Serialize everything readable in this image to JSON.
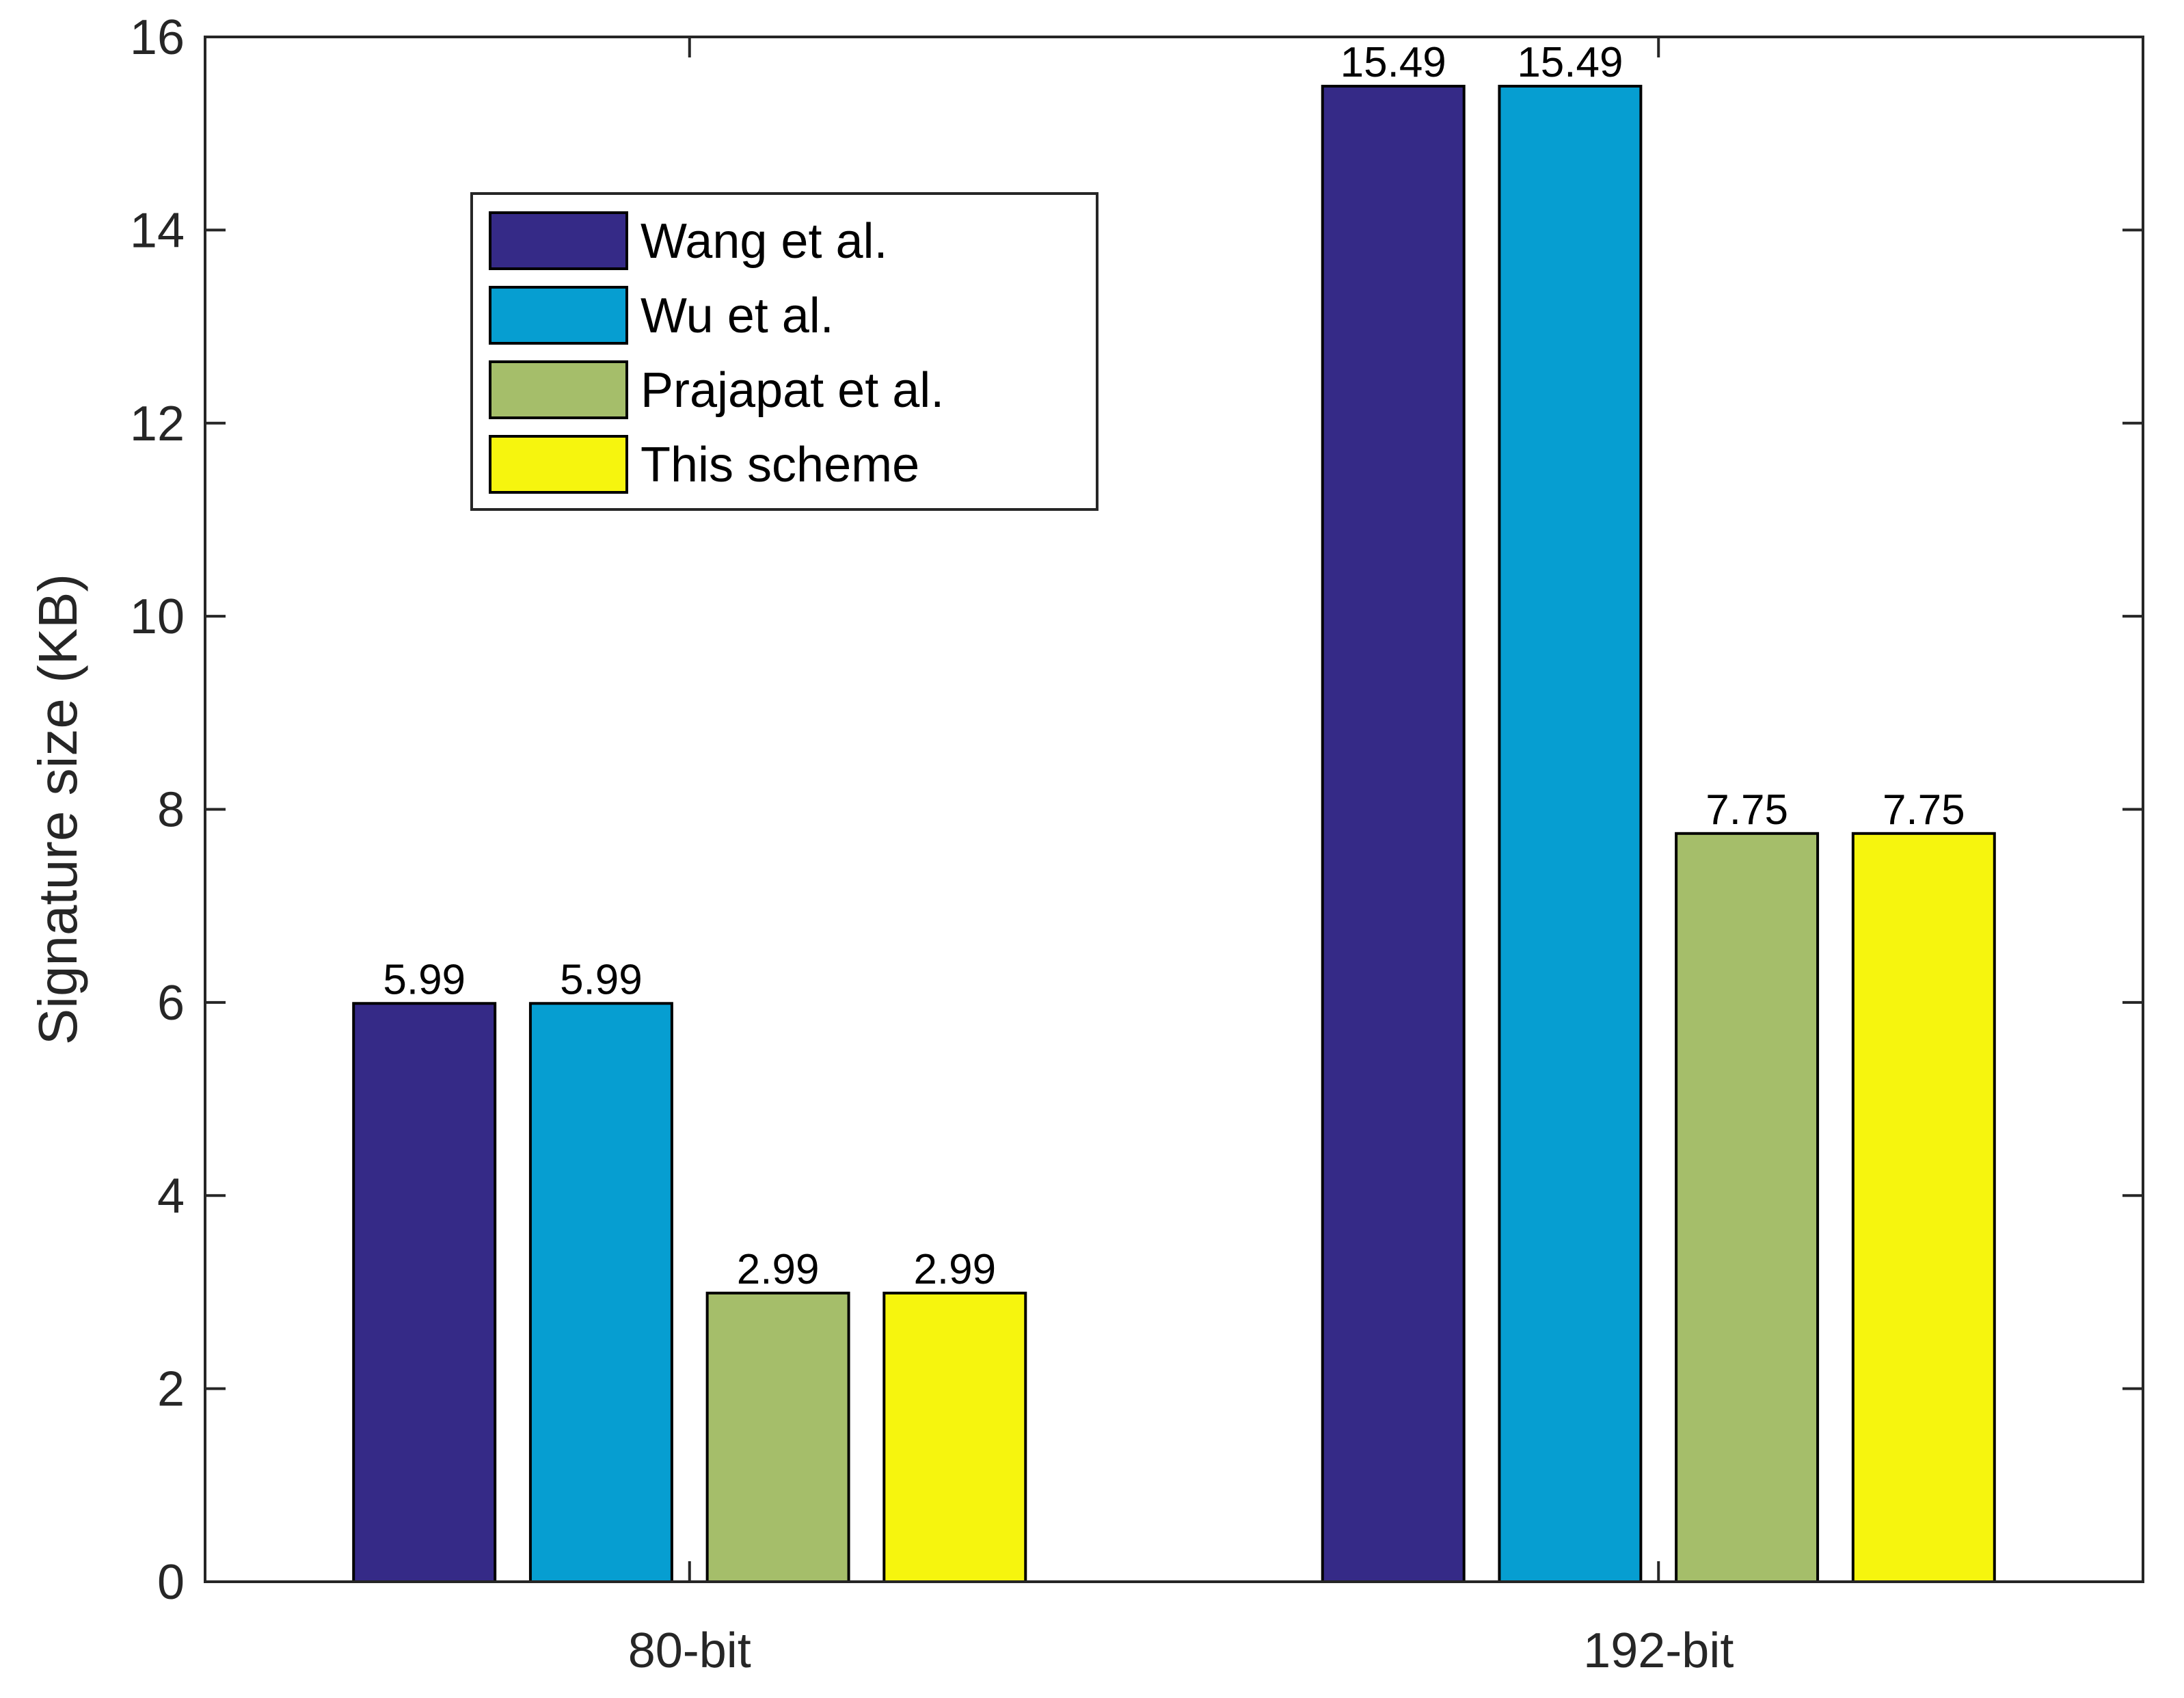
{
  "chart_data": {
    "type": "bar",
    "title": "",
    "xlabel": "",
    "ylabel": "Signature size (KB)",
    "ylim": [
      0,
      16
    ],
    "yticks": [
      "0",
      "2",
      "4",
      "6",
      "8",
      "10",
      "12",
      "14",
      "16"
    ],
    "categories": [
      "80-bit",
      "192-bit"
    ],
    "series": [
      {
        "name": "Wang et al.",
        "color": "#352a87",
        "values": [
          5.99,
          15.49
        ],
        "labels": [
          "5.99",
          "15.49"
        ]
      },
      {
        "name": "Wu et al.",
        "color": "#069ed1",
        "values": [
          5.99,
          15.49
        ],
        "labels": [
          "5.99",
          "15.49"
        ]
      },
      {
        "name": "Prajapat et al.",
        "color": "#a5be6a",
        "values": [
          2.99,
          7.75
        ],
        "labels": [
          "2.99",
          "7.75"
        ]
      },
      {
        "name": "This scheme",
        "color": "#f6f50e",
        "values": [
          2.99,
          7.75
        ],
        "labels": [
          "2.99",
          "7.75"
        ]
      }
    ],
    "legend_position": "top-left",
    "grid": false
  }
}
